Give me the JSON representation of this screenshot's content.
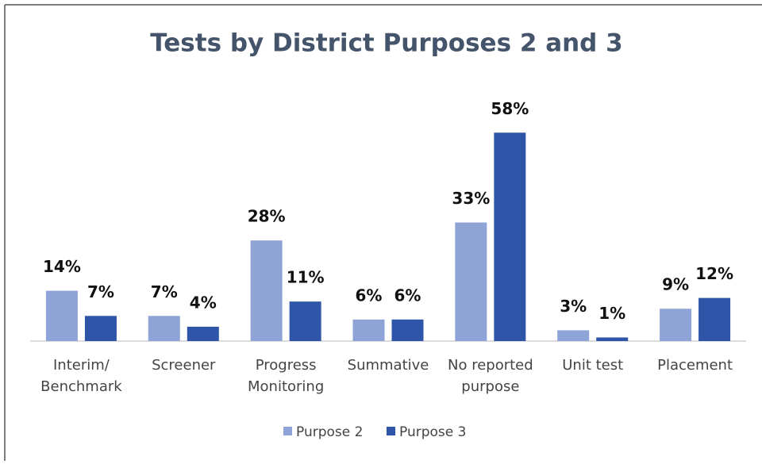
{
  "chart_data": {
    "type": "bar",
    "title": "Tests by District Purposes 2 and 3",
    "categories": [
      "Interim/ Benchmark",
      "Screener",
      "Progress Monitoring",
      "Summative",
      "No reported purpose",
      "Unit test",
      "Placement"
    ],
    "series": [
      {
        "name": "Purpose 2",
        "color": "#8ea3d6",
        "values": [
          14,
          7,
          28,
          6,
          33,
          3,
          9
        ],
        "value_labels": [
          "14%",
          "7%",
          "28%",
          "6%",
          "33%",
          "3%",
          "9%"
        ]
      },
      {
        "name": "Purpose 3",
        "color": "#2f55a9",
        "values": [
          7,
          4,
          11,
          6,
          58,
          1,
          12
        ],
        "value_labels": [
          "7%",
          "4%",
          "11%",
          "6%",
          "58%",
          "1%",
          "12%"
        ]
      }
    ],
    "legend": "bottom"
  }
}
